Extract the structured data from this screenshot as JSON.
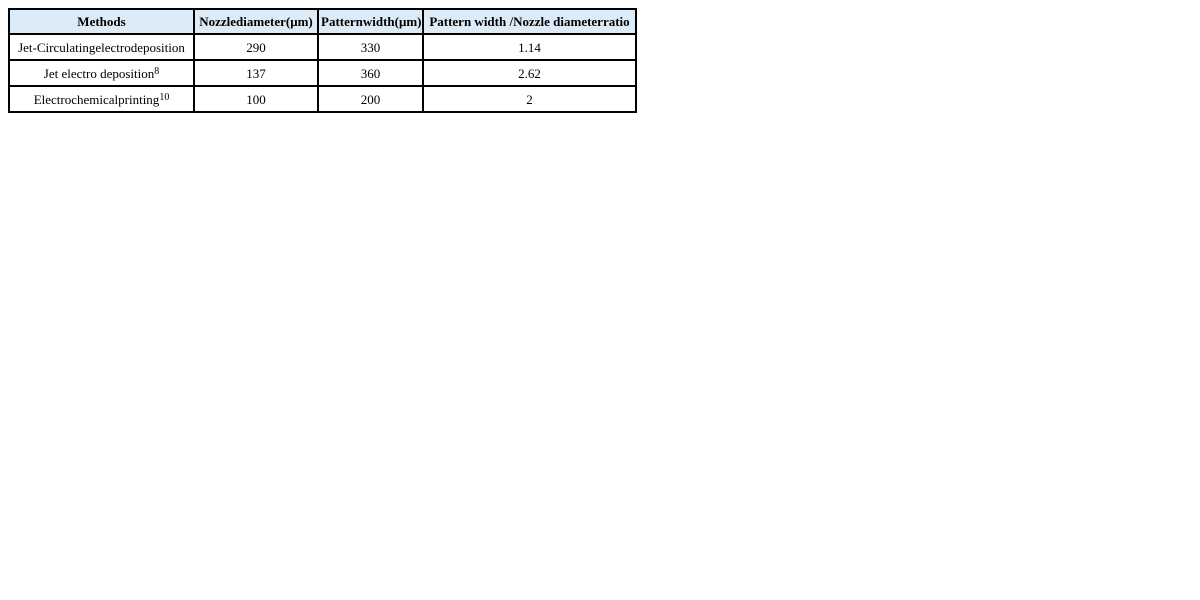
{
  "page": {
    "background": "#ffffff"
  },
  "table": {
    "header_bg": "#dcebf8",
    "border_color": "#000000",
    "columns": [
      "Methods",
      "Nozzlediameter(μm)",
      "Patternwidth(μm)",
      "Pattern width /Nozzle diameterratio"
    ],
    "rows": [
      {
        "method": "Jet-Circulatingelectrodeposition",
        "method_sup": "",
        "nozzle_diameter": "290",
        "pattern_width": "330",
        "ratio": "1.14"
      },
      {
        "method": "Jet electro deposition",
        "method_sup": "8",
        "nozzle_diameter": "137",
        "pattern_width": "360",
        "ratio": "2.62"
      },
      {
        "method": "Electrochemicalprinting",
        "method_sup": "10",
        "nozzle_diameter": "100",
        "pattern_width": "200",
        "ratio": "2"
      }
    ]
  },
  "chart_data": {
    "type": "table",
    "columns": [
      "Methods",
      "Nozzlediameter(μm)",
      "Patternwidth(μm)",
      "Pattern width /Nozzle diameterratio"
    ],
    "rows": [
      [
        "Jet-Circulatingelectrodeposition",
        290,
        330,
        1.14
      ],
      [
        "Jet electro deposition [8]",
        137,
        360,
        2.62
      ],
      [
        "Electrochemicalprinting [10]",
        100,
        200,
        2
      ]
    ]
  }
}
